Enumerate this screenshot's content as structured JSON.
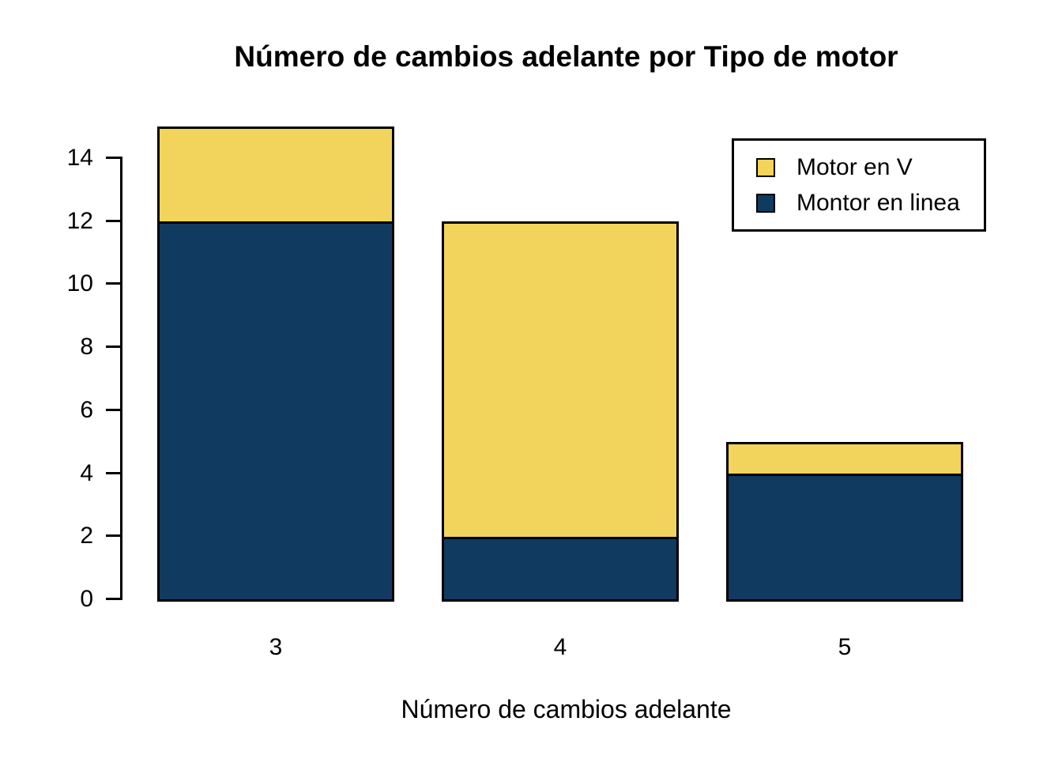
{
  "figure": {
    "title": "Número de cambios adelante por Tipo de motor",
    "x_axis_title": "Número de cambios adelante"
  },
  "legend": {
    "items": [
      {
        "label": "Motor en V",
        "color": "#F2D35C"
      },
      {
        "label": "Montor en linea",
        "color": "#113A60"
      }
    ]
  },
  "chart_data": {
    "type": "bar",
    "stacked": true,
    "title": "Número de cambios adelante por Tipo de motor",
    "xlabel": "Número de cambios adelante",
    "ylabel": "",
    "categories": [
      "3",
      "4",
      "5"
    ],
    "series": [
      {
        "name": "Montor en linea",
        "color": "#113A60",
        "values": [
          12,
          2,
          4
        ]
      },
      {
        "name": "Motor en V",
        "color": "#F2D35C",
        "values": [
          3,
          10,
          1
        ]
      }
    ],
    "stack_totals": [
      15,
      12,
      5
    ],
    "yticks": [
      0,
      2,
      4,
      6,
      8,
      10,
      12,
      14
    ],
    "ylim": [
      0,
      15
    ],
    "grid": false,
    "legend_position": "top-right",
    "bar_edge_color": "#000000",
    "background": "#FFFFFF"
  }
}
